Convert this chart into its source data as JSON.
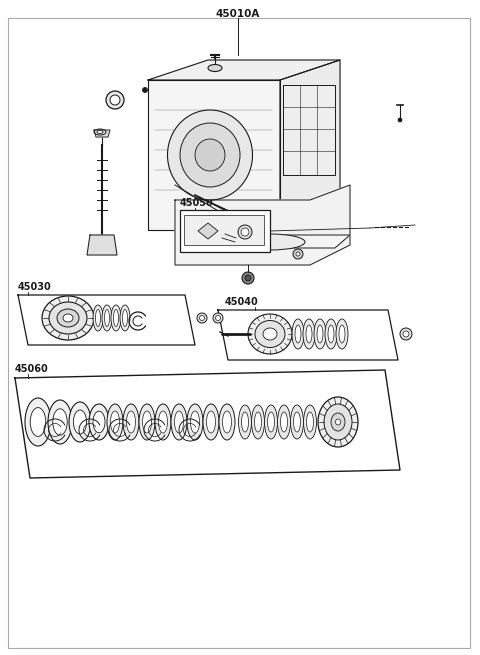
{
  "bg_color": "#ffffff",
  "line_color": "#1a1a1a",
  "border_color": "#999999",
  "labels": {
    "main": "45010A",
    "p1": "45030",
    "p2": "45050",
    "p3": "45040",
    "p4": "45060"
  },
  "fig_width": 4.8,
  "fig_height": 6.55,
  "dpi": 100
}
